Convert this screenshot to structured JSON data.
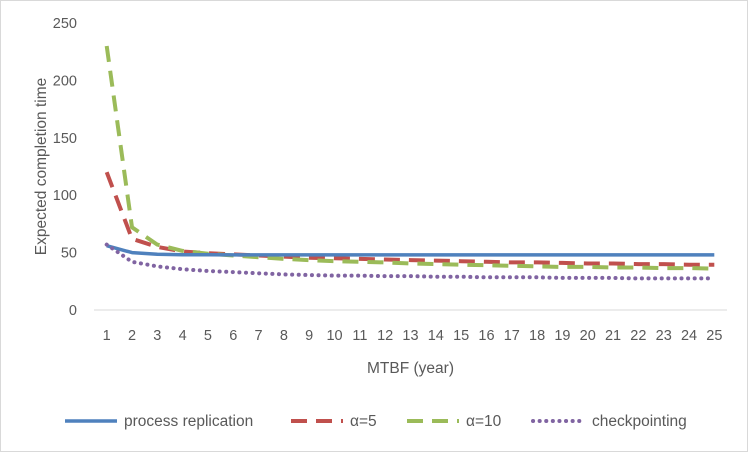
{
  "chart_data": {
    "type": "line",
    "title": "",
    "xlabel": "MTBF (year)",
    "ylabel": "Expected completion time",
    "categories": [
      "1",
      "2",
      "3",
      "4",
      "5",
      "6",
      "7",
      "8",
      "9",
      "10",
      "11",
      "12",
      "13",
      "14",
      "15",
      "16",
      "17",
      "18",
      "19",
      "20",
      "21",
      "22",
      "23",
      "24",
      "25"
    ],
    "ylim": [
      0,
      250
    ],
    "yticks": [
      0,
      50,
      100,
      150,
      200,
      250
    ],
    "grid": false,
    "legend_position": "bottom",
    "series": [
      {
        "name": "process replication",
        "color": "#4f81bd",
        "dash": "solid",
        "values": [
          56,
          50,
          48.5,
          48.2,
          48.1,
          48,
          48,
          48,
          48,
          48,
          48,
          48,
          48,
          48,
          48,
          48,
          48,
          48,
          48,
          48,
          48,
          48,
          48,
          48,
          48
        ]
      },
      {
        "name": "α=5",
        "color": "#c0504d",
        "dash": "dash",
        "values": [
          120,
          62,
          55,
          51,
          49.5,
          48.5,
          47.5,
          46.5,
          45.5,
          45,
          44.5,
          44,
          43.5,
          43,
          42.5,
          42,
          41.5,
          41.5,
          41,
          40.5,
          40.5,
          40,
          40,
          39.5,
          39.5
        ]
      },
      {
        "name": "α=10",
        "color": "#9bbb59",
        "dash": "dash",
        "values": [
          230,
          72,
          57,
          51.5,
          49,
          47.5,
          46,
          44.5,
          43.5,
          42.5,
          42,
          41.5,
          40.5,
          40,
          39.5,
          39,
          38.5,
          38,
          37.5,
          37.5,
          37,
          37,
          36.5,
          36.5,
          36
        ]
      },
      {
        "name": "checkpointing",
        "color": "#8064a2",
        "dash": "dot",
        "values": [
          57,
          42,
          38,
          35.5,
          34,
          33,
          32,
          31,
          30.5,
          30,
          30,
          29.5,
          29.5,
          29,
          29,
          28.5,
          28.5,
          28.5,
          28,
          28,
          28,
          27.5,
          27.5,
          27.5,
          27.5
        ]
      }
    ]
  }
}
